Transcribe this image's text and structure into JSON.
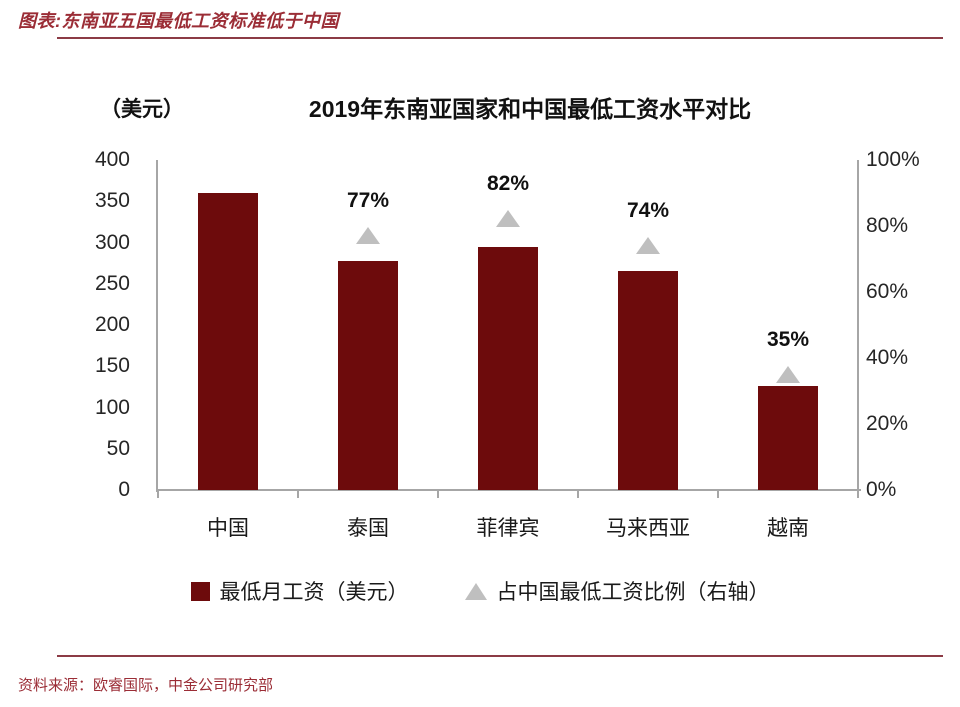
{
  "header": {
    "title": "图表:东南亚五国最低工资标准低于中国"
  },
  "footer": {
    "source": "资料来源：欧睿国际，中金公司研究部"
  },
  "colors": {
    "bar": "#6d0b0c",
    "triangle": "#bfbfbf",
    "accent_red": "#9b2d36",
    "rule_line": "#8c3b45",
    "axis_gray": "#a6a6a6",
    "text": "#111111"
  },
  "chart_data": {
    "type": "bar",
    "title": "2019年东南亚国家和中国最低工资水平对比",
    "unit_label": "（美元）",
    "categories": [
      "中国",
      "泰国",
      "菲律宾",
      "马来西亚",
      "越南"
    ],
    "series": [
      {
        "name": "最低月工资（美元）",
        "type": "bar",
        "axis": "left",
        "values": [
          360,
          277,
          295,
          266,
          126
        ]
      },
      {
        "name": "占中国最低工资比例（右轴）",
        "type": "triangle-marker",
        "axis": "right",
        "values": [
          null,
          77,
          82,
          74,
          35
        ],
        "labels": [
          "",
          "77%",
          "82%",
          "74%",
          "35%"
        ]
      }
    ],
    "left_axis": {
      "min": 0,
      "max": 400,
      "step": 50,
      "ticks": [
        "400",
        "350",
        "300",
        "250",
        "200",
        "150",
        "100",
        "50",
        "0"
      ]
    },
    "right_axis": {
      "min": 0,
      "max": 100,
      "step": 20,
      "ticks": [
        "100%",
        "80%",
        "60%",
        "40%",
        "20%",
        "0%"
      ]
    },
    "legend": [
      {
        "marker": "square",
        "label": "最低月工资（美元）"
      },
      {
        "marker": "triangle",
        "label": "占中国最低工资比例（右轴）"
      }
    ],
    "grid": false,
    "legend_position": "bottom"
  }
}
